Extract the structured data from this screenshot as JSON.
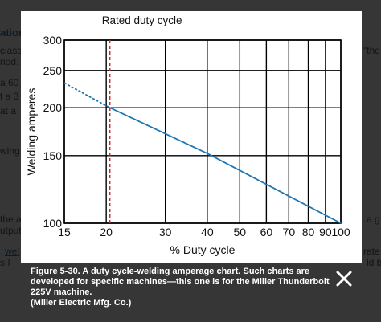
{
  "background": {
    "fragments": [
      {
        "text": "ation",
        "cls": "heading",
        "left": 0,
        "top": 33
      },
      {
        "text": "class",
        "cls": "",
        "left": 0,
        "top": 56
      },
      {
        "text": "riod.",
        "cls": "",
        "left": 0,
        "top": 70
      },
      {
        "text": "a 60",
        "cls": "",
        "left": 0,
        "top": 96
      },
      {
        "text": "t a 3",
        "cls": "",
        "left": 0,
        "top": 113
      },
      {
        "text": "at a",
        "cls": "",
        "left": 0,
        "top": 131
      },
      {
        "text": "wing",
        "cls": "",
        "left": 0,
        "top": 181
      },
      {
        "text": "the a",
        "cls": "",
        "left": 0,
        "top": 266
      },
      {
        "text": "utput",
        "cls": "",
        "left": 0,
        "top": 280
      },
      {
        "text": "wel",
        "cls": "link",
        "left": 6,
        "top": 306
      },
      {
        "text": "s I",
        "cls": "",
        "left": 0,
        "top": 320
      },
      {
        "text": "\"the",
        "cls": "",
        "left": 452,
        "top": 56
      },
      {
        "text": "a g",
        "cls": "",
        "left": 456,
        "top": 266
      },
      {
        "text": "rate",
        "cls": "",
        "left": 452,
        "top": 306
      },
      {
        "text": "ld b",
        "cls": "",
        "left": 456,
        "top": 320
      }
    ]
  },
  "caption": {
    "lines": [
      "Figure 5-30. A duty cycle-welding amperage chart. Such charts are",
      "developed for specific machines—this one is for the Miller Thunderbolt",
      "225V machine.",
      "(Miller Electric Mfg. Co.)"
    ]
  },
  "close_icon": "close-icon",
  "colors": {
    "line": "#1f77b4",
    "rated_line": "#d62728",
    "grid": "#000000",
    "overlay": "#000000"
  },
  "chart_data": {
    "type": "line",
    "title": "",
    "xlabel": "% Duty cycle",
    "ylabel": "Welding amperes",
    "xscale": "log",
    "yscale": "log",
    "xlim": [
      15,
      100
    ],
    "ylim": [
      100,
      300
    ],
    "xticks": [
      15,
      20,
      30,
      40,
      50,
      60,
      70,
      80,
      90,
      100
    ],
    "xtick_labels": [
      "15",
      "20",
      "30",
      "40",
      "50",
      "60",
      "70",
      "80",
      "90",
      "100"
    ],
    "yticks": [
      100,
      150,
      200,
      250,
      300
    ],
    "ytick_labels": [
      "100",
      "150",
      "200",
      "250",
      "300"
    ],
    "grid": true,
    "series": [
      {
        "style": "dashed",
        "x": [
          15,
          20.5
        ],
        "y": [
          232,
          200
        ]
      },
      {
        "style": "solid",
        "x": [
          20.5,
          40,
          100
        ],
        "y": [
          200,
          152,
          100
        ]
      }
    ],
    "rated_duty_cycle": {
      "x": 20.5,
      "label": "Rated duty cycle"
    }
  }
}
